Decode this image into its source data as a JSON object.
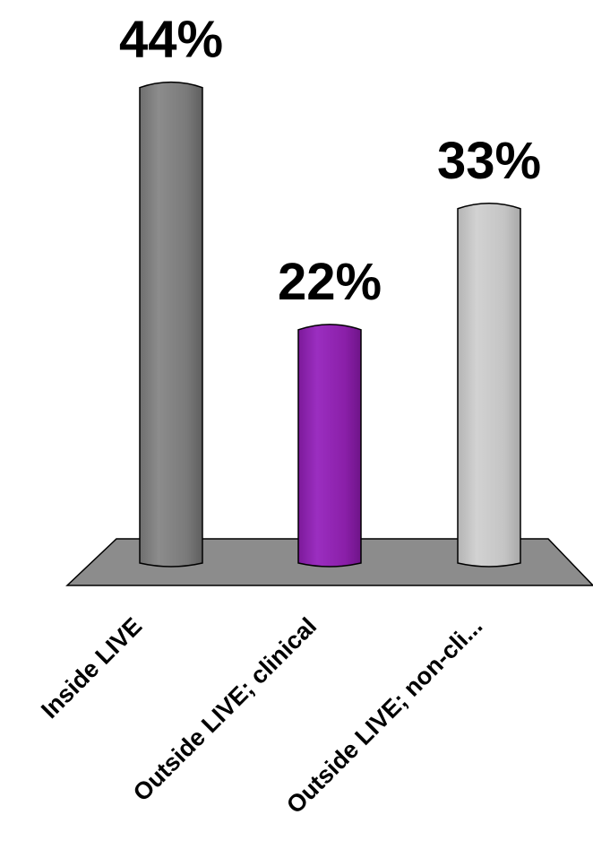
{
  "chart_data": {
    "type": "bar",
    "title": "",
    "xlabel": "",
    "ylabel": "",
    "categories": [
      "Inside LIVE",
      "Outside LIVE; clinical",
      "Outside LIVE; non-cli..."
    ],
    "values": [
      44,
      22,
      33
    ],
    "data_labels": [
      "44%",
      "22%",
      "33%"
    ],
    "colors": [
      "#7a7a7a",
      "#8a1fa8",
      "#c4c4c4"
    ],
    "floor_color": "#8c8c8c",
    "grid": false,
    "legend": "none",
    "style": "3d-cylinder"
  }
}
